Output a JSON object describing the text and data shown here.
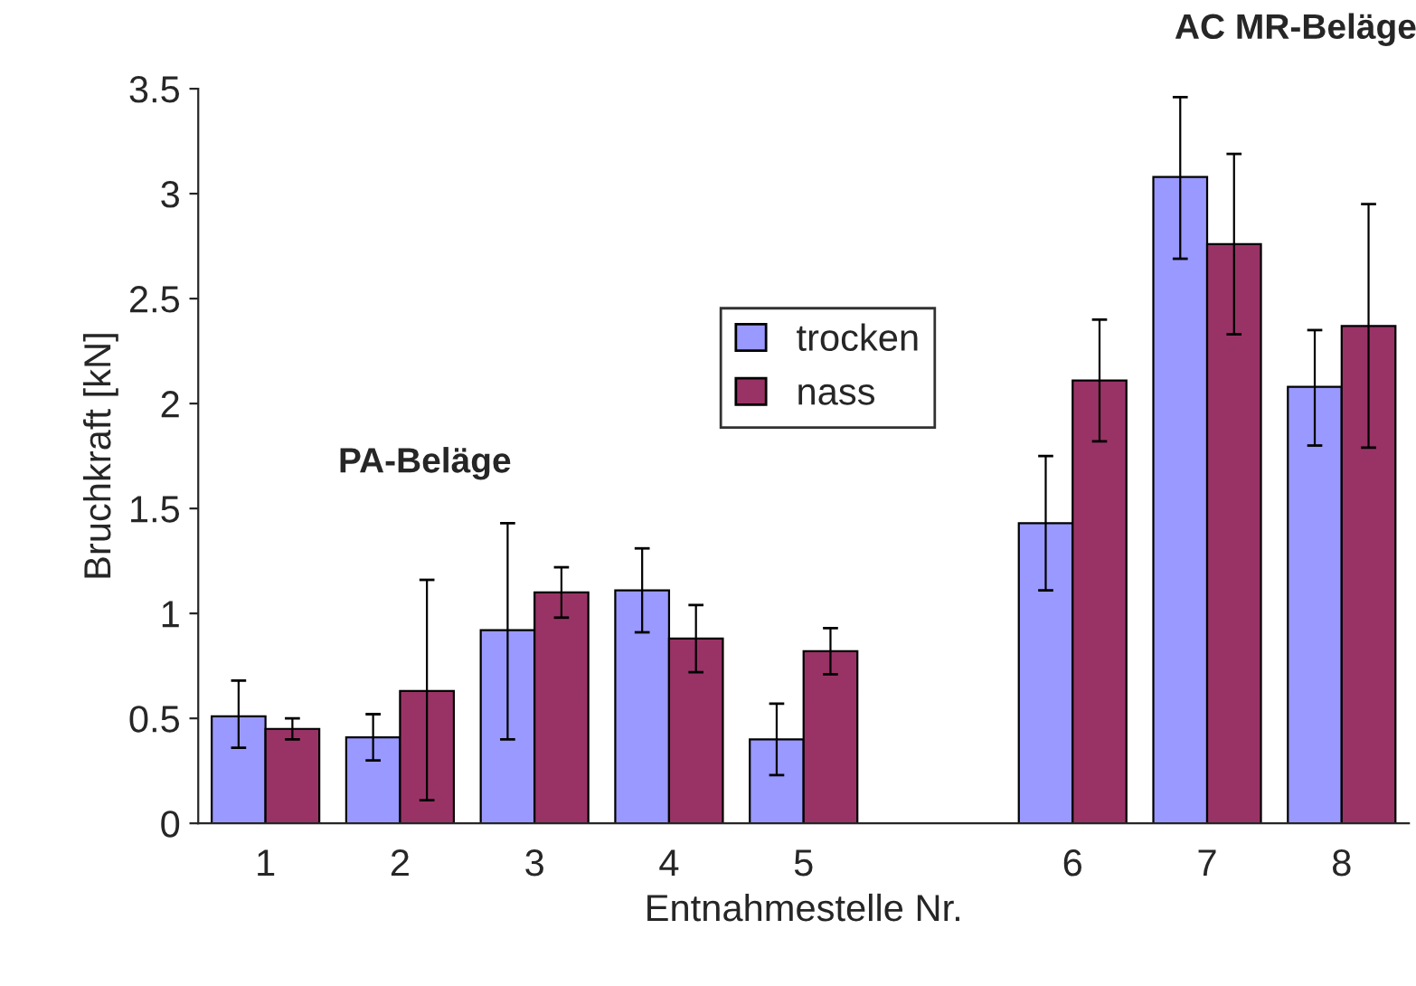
{
  "chart_data": {
    "type": "bar",
    "xlabel": "Entnahmestelle Nr.",
    "ylabel": "Bruchkraft [kN]",
    "categories": [
      "1",
      "2",
      "3",
      "4",
      "5",
      null,
      "6",
      "7",
      "8"
    ],
    "series": [
      {
        "name": "trocken",
        "color": "#9999ff",
        "values": [
          0.51,
          0.41,
          0.92,
          1.11,
          0.4,
          null,
          1.43,
          3.08,
          2.08
        ],
        "errors": [
          [
            0.36,
            0.68
          ],
          [
            0.3,
            0.52
          ],
          [
            0.4,
            1.43
          ],
          [
            0.91,
            1.31
          ],
          [
            0.23,
            0.57
          ],
          null,
          [
            1.11,
            1.75
          ],
          [
            2.69,
            3.46
          ],
          [
            1.8,
            2.35
          ]
        ]
      },
      {
        "name": "nass",
        "color": "#993366",
        "values": [
          0.45,
          0.63,
          1.1,
          0.88,
          0.82,
          null,
          2.11,
          2.76,
          2.37
        ],
        "errors": [
          [
            0.4,
            0.5
          ],
          [
            0.11,
            1.16
          ],
          [
            0.98,
            1.22
          ],
          [
            0.72,
            1.04
          ],
          [
            0.71,
            0.93
          ],
          null,
          [
            1.82,
            2.4
          ],
          [
            2.33,
            3.19
          ],
          [
            1.79,
            2.95
          ]
        ]
      }
    ],
    "ylim": [
      0,
      3.5
    ],
    "yticks": [
      0,
      0.5,
      1,
      1.5,
      2,
      2.5,
      3,
      3.5
    ],
    "annotations": [
      "PA-Beläge",
      "AC MR-Beläge"
    ],
    "legend": "center",
    "grid": false
  }
}
